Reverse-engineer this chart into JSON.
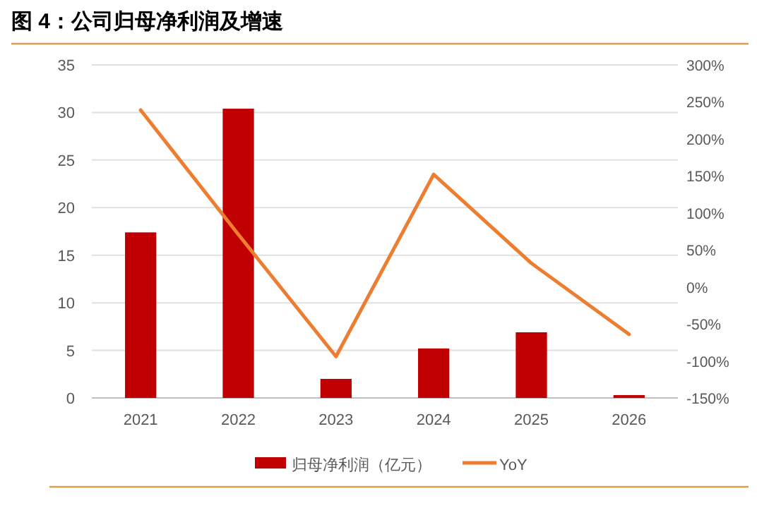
{
  "chart_data": {
    "type": "bar",
    "title": "图 4：公司归母净利润及增速",
    "categories": [
      "2021",
      "2022",
      "2023",
      "2024",
      "2025",
      "2026"
    ],
    "series": [
      {
        "name": "归母净利润（亿元）",
        "color": "#c00000",
        "values": [
          17.4,
          30.4,
          2.0,
          5.2,
          6.9,
          0.3
        ]
      },
      {
        "name": "YoY",
        "type": "line",
        "axis": "y2",
        "color": "#ed7d31",
        "values": [
          239,
          71,
          -94,
          152,
          32,
          -64
        ]
      }
    ],
    "ylim": [
      0,
      35
    ],
    "yticks": [
      0,
      5,
      10,
      15,
      20,
      25,
      30,
      35
    ],
    "y2lim": [
      -150,
      300
    ],
    "y2ticks": [
      {
        "value": -150,
        "label": "-150%"
      },
      {
        "value": -100,
        "label": "-100%"
      },
      {
        "value": -50,
        "label": "-50%"
      },
      {
        "value": 0,
        "label": "0%"
      },
      {
        "value": 50,
        "label": "50%"
      },
      {
        "value": 100,
        "label": "100%"
      },
      {
        "value": 150,
        "label": "150%"
      },
      {
        "value": 200,
        "label": "200%"
      },
      {
        "value": 250,
        "label": "250%"
      },
      {
        "value": 300,
        "label": "300%"
      }
    ],
    "grid": "y",
    "legend": "bottom",
    "marker": "none",
    "line_style": "solid"
  }
}
